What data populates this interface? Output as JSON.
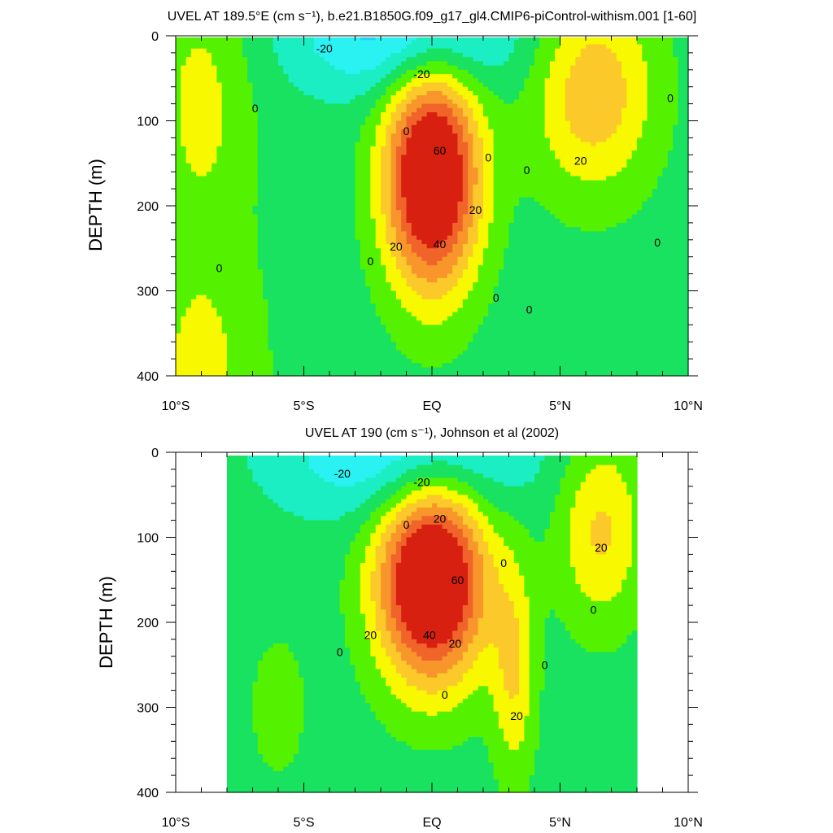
{
  "chart_data": [
    {
      "type": "contour",
      "title": "UVEL AT 189.5°E (cm s⁻¹), b.e21.B1850G.f09_g17_gl4.CMIP6-piControl-withism.001 [1-60]",
      "xlabel": "",
      "ylabel": "DEPTH (m)",
      "xlim": [
        -10,
        10
      ],
      "ylim": [
        400,
        0
      ],
      "x_ticks": [
        -10,
        -5,
        0,
        5,
        10
      ],
      "x_tick_labels": [
        "10°S",
        "5°S",
        "EQ",
        "5°N",
        "10°N"
      ],
      "y_ticks": [
        0,
        100,
        200,
        300,
        400
      ],
      "y_tick_labels": [
        "0",
        "100",
        "200",
        "300",
        "400"
      ],
      "grid": false,
      "legend": "none",
      "levels": [
        -30,
        -20,
        -10,
        0,
        10,
        20,
        30,
        40,
        50,
        60,
        70
      ],
      "contour_labels": [
        {
          "text": "-20",
          "x": -4.2,
          "y": 15
        },
        {
          "text": "-20",
          "x": -0.4,
          "y": 45
        },
        {
          "text": "0",
          "x": -6.9,
          "y": 85
        },
        {
          "text": "0",
          "x": -1.0,
          "y": 112
        },
        {
          "text": "60",
          "x": 0.3,
          "y": 135
        },
        {
          "text": "0",
          "x": 2.2,
          "y": 143
        },
        {
          "text": "20",
          "x": 5.8,
          "y": 147
        },
        {
          "text": "0",
          "x": 3.7,
          "y": 158
        },
        {
          "text": "0",
          "x": 9.3,
          "y": 73
        },
        {
          "text": "20",
          "x": 1.7,
          "y": 205
        },
        {
          "text": "40",
          "x": 0.3,
          "y": 245
        },
        {
          "text": "20",
          "x": -1.4,
          "y": 248
        },
        {
          "text": "0",
          "x": 8.8,
          "y": 243
        },
        {
          "text": "0",
          "x": -2.4,
          "y": 265
        },
        {
          "text": "0",
          "x": -8.3,
          "y": 273
        },
        {
          "text": "0",
          "x": 2.5,
          "y": 308
        },
        {
          "text": "0",
          "x": 3.8,
          "y": 322
        }
      ],
      "fields": [
        {
          "name": "equatorial-undercurrent",
          "x": 0.0,
          "y": 165,
          "sx": 1.3,
          "sy": 95,
          "amp": 82
        },
        {
          "name": "north-eastward-jet",
          "x": 6.3,
          "y": 65,
          "sx": 1.7,
          "sy": 85,
          "amp": 33
        },
        {
          "name": "surface-westward-flow",
          "x": -1.0,
          "y": 0,
          "sx": 3.0,
          "sy": 50,
          "amp": -32
        },
        {
          "name": "south-western-flow",
          "x": -9.0,
          "y": 70,
          "sx": 1.4,
          "sy": 110,
          "amp": 18
        },
        {
          "name": "south-deep-flow",
          "x": -9.0,
          "y": 400,
          "sx": 1.7,
          "sy": 120,
          "amp": 18
        }
      ]
    },
    {
      "type": "contour",
      "title": "UVEL AT 190 (cm s⁻¹), Johnson et al (2002)",
      "xlabel": "",
      "ylabel": "DEPTH (m)",
      "xlim": [
        -10,
        10
      ],
      "ylim": [
        400,
        0
      ],
      "x_ticks": [
        -10,
        -5,
        0,
        5,
        10
      ],
      "x_tick_labels": [
        "10°S",
        "5°S",
        "EQ",
        "5°N",
        "10°N"
      ],
      "y_ticks": [
        0,
        100,
        200,
        300,
        400
      ],
      "y_tick_labels": [
        "0",
        "100",
        "200",
        "300",
        "400"
      ],
      "grid": false,
      "legend": "none",
      "levels": [
        -30,
        -20,
        -10,
        0,
        10,
        20,
        30,
        40,
        50,
        60,
        70
      ],
      "data_x_range": [
        -8,
        8
      ],
      "contour_labels": [
        {
          "text": "-20",
          "x": -3.5,
          "y": 25
        },
        {
          "text": "-20",
          "x": -0.4,
          "y": 35
        },
        {
          "text": "20",
          "x": 0.3,
          "y": 78
        },
        {
          "text": "0",
          "x": -1.0,
          "y": 85
        },
        {
          "text": "20",
          "x": 6.6,
          "y": 112
        },
        {
          "text": "0",
          "x": 2.8,
          "y": 130
        },
        {
          "text": "60",
          "x": 1.0,
          "y": 150
        },
        {
          "text": "0",
          "x": 6.3,
          "y": 185
        },
        {
          "text": "20",
          "x": -2.4,
          "y": 215
        },
        {
          "text": "40",
          "x": -0.1,
          "y": 215
        },
        {
          "text": "0",
          "x": -3.6,
          "y": 235
        },
        {
          "text": "20",
          "x": 0.9,
          "y": 225
        },
        {
          "text": "0",
          "x": 4.4,
          "y": 250
        },
        {
          "text": "0",
          "x": 0.5,
          "y": 285
        },
        {
          "text": "20",
          "x": 3.3,
          "y": 310
        }
      ],
      "fields": [
        {
          "name": "equatorial-undercurrent",
          "x": 0.0,
          "y": 150,
          "sx": 1.5,
          "sy": 85,
          "amp": 85
        },
        {
          "name": "north-eastward-jet",
          "x": 6.6,
          "y": 90,
          "sx": 1.2,
          "sy": 80,
          "amp": 27
        },
        {
          "name": "north-subsurface-jet",
          "x": 3.2,
          "y": 260,
          "sx": 0.6,
          "sy": 90,
          "amp": 24
        },
        {
          "name": "surface-westward-flow",
          "x": -1.0,
          "y": 0,
          "sx": 3.3,
          "sy": 55,
          "amp": -30
        },
        {
          "name": "south-deep-flow",
          "x": -6.0,
          "y": 300,
          "sx": 0.9,
          "sy": 70,
          "amp": 9
        }
      ]
    }
  ]
}
